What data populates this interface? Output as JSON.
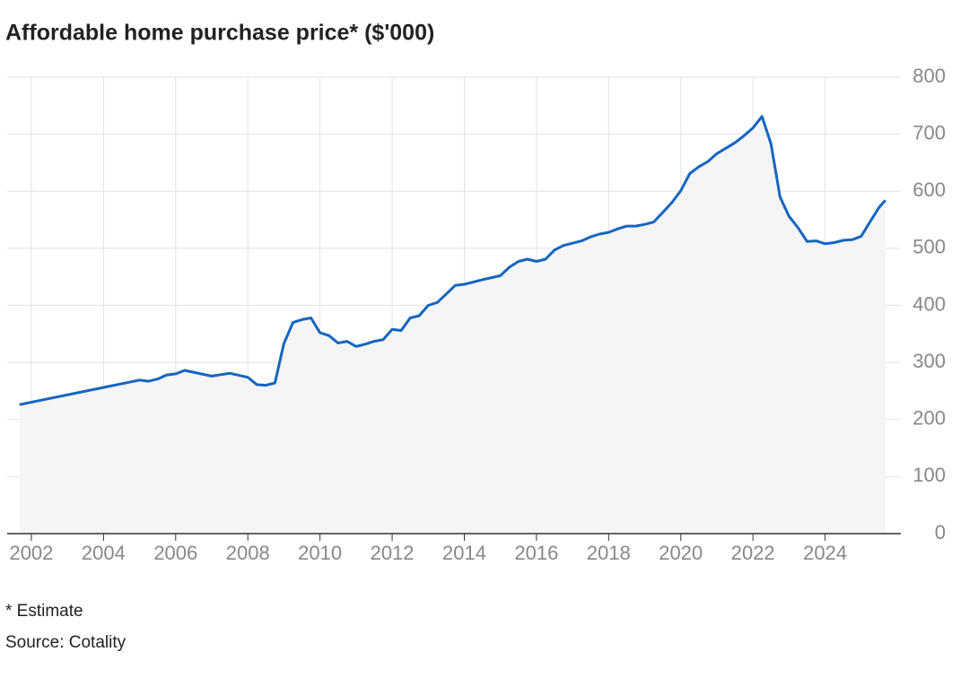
{
  "chart_data": {
    "type": "line",
    "title": "Affordable home purchase price* ($'000)",
    "footnote": "* Estimate",
    "source": "Source: Cotality",
    "series": [
      {
        "color": "#1565c0",
        "fill": "#f5f5f5",
        "x": [
          2001.67,
          2005.0,
          2005.25,
          2005.5,
          2005.75,
          2006.0,
          2006.25,
          2007.0,
          2007.5,
          2008.0,
          2008.25,
          2008.5,
          2008.75,
          2009.0,
          2009.25,
          2009.5,
          2009.75,
          2010.0,
          2010.25,
          2010.5,
          2010.75,
          2011.0,
          2011.25,
          2011.5,
          2011.75,
          2012.0,
          2012.25,
          2012.5,
          2012.75,
          2013.0,
          2013.25,
          2013.5,
          2013.75,
          2014.0,
          2014.5,
          2015.0,
          2015.25,
          2015.5,
          2015.75,
          2016.0,
          2016.25,
          2016.5,
          2016.75,
          2017.25,
          2017.5,
          2017.75,
          2018.0,
          2018.25,
          2018.5,
          2018.75,
          2019.0,
          2019.25,
          2019.5,
          2019.75,
          2020.0,
          2020.25,
          2020.5,
          2020.75,
          2021.0,
          2021.5,
          2021.75,
          2022.0,
          2022.25,
          2022.5,
          2022.75,
          2023.0,
          2023.25,
          2023.5,
          2023.75,
          2024.0,
          2024.25,
          2024.5,
          2024.75,
          2025.0,
          2025.25,
          2025.5,
          2025.67
        ],
        "values": [
          226,
          269,
          267,
          271,
          278,
          280,
          286,
          276,
          281,
          274,
          261,
          260,
          264,
          333,
          370,
          375,
          378,
          352,
          347,
          334,
          337,
          328,
          332,
          337,
          340,
          358,
          356,
          378,
          382,
          400,
          405,
          420,
          435,
          437,
          445,
          452,
          467,
          477,
          481,
          477,
          481,
          497,
          505,
          513,
          520,
          525,
          528,
          534,
          539,
          539,
          542,
          546,
          563,
          580,
          601,
          631,
          643,
          652,
          666,
          685,
          697,
          711,
          731,
          683,
          590,
          556,
          536,
          512,
          513,
          508,
          510,
          514,
          515,
          521,
          547,
          572,
          584
        ]
      }
    ],
    "xlim": [
      2001.33,
      2025.75
    ],
    "xticks": [
      2002,
      2004,
      2006,
      2008,
      2010,
      2012,
      2014,
      2016,
      2018,
      2020,
      2022,
      2024
    ],
    "ylim": [
      0,
      800
    ],
    "yticks": [
      0,
      100,
      200,
      300,
      400,
      500,
      600,
      700,
      800
    ],
    "grid": true
  }
}
